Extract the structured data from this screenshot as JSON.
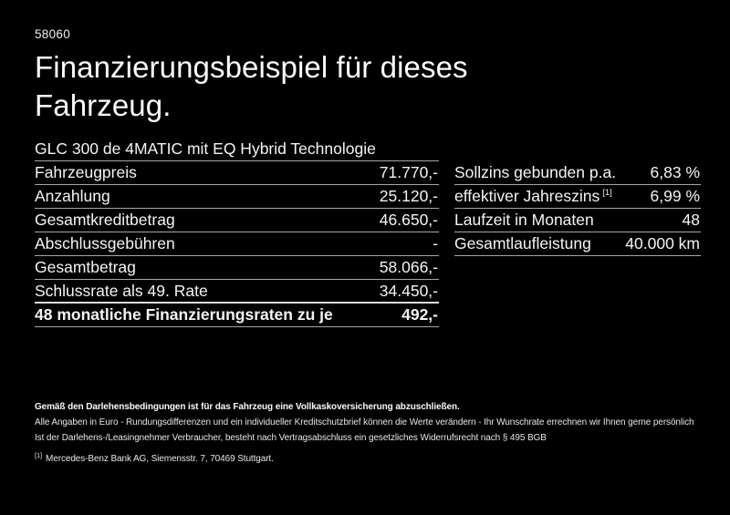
{
  "page": {
    "doc_number": "58060",
    "title": "Finanzierungsbeispiel für dieses Fahrzeug.",
    "vehicle_model": "GLC 300 de 4MATIC mit EQ Hybrid Technologie"
  },
  "financing_table": {
    "rows": [
      {
        "label": "Fahrzeugpreis",
        "value": "71.770,-"
      },
      {
        "label": "Anzahlung",
        "value": "25.120,-"
      },
      {
        "label": "Gesamtkreditbetrag",
        "value": "46.650,-"
      },
      {
        "label": "Abschlussgebühren",
        "value": "-"
      },
      {
        "label": "Gesamtbetrag",
        "value": "58.066,-"
      },
      {
        "label": "Schlussrate als 49. Rate",
        "value": "34.450,-"
      }
    ],
    "total_row": {
      "label": "48 monatliche Finanzierungsraten zu je",
      "value": "492,-"
    }
  },
  "conditions_table": {
    "rows": [
      {
        "label": "Sollzins gebunden p.a.",
        "sup": "",
        "value": "6,83 %"
      },
      {
        "label": "effektiver Jahreszins",
        "sup": "[1]",
        "value": "6,99 %"
      },
      {
        "label": "Laufzeit in Monaten",
        "sup": "",
        "value": "48"
      },
      {
        "label": "Gesamtlaufleistung",
        "sup": "",
        "value": "40.000 km"
      }
    ]
  },
  "footnotes": {
    "bold_note": "Gemäß den Darlehensbedingungen ist für das Fahrzeug eine Vollkaskoversicherung abzuschließen.",
    "note_1": "Alle Angaben in Euro - Rundungsdifferenzen und ein individueller Kreditschutzbrief können die Werte verändern - Ihr Wunschrate errechnen wir Ihnen gerne persönlich",
    "note_2": "Ist der Darlehens-/Leasingnehmer Verbraucher, besteht nach Vertragsabschluss ein gesetzliches Widerrufsrecht nach § 495 BGB",
    "reference_marker": "[1]",
    "reference_text": "Mercedes-Benz Bank AG, Siemensstr. 7, 70469 Stuttgart."
  },
  "colors": {
    "background": "#000000",
    "text": "#f4f4f4",
    "divider": "#a6a6a6",
    "emphasis_divider": "#dcdcdc"
  }
}
